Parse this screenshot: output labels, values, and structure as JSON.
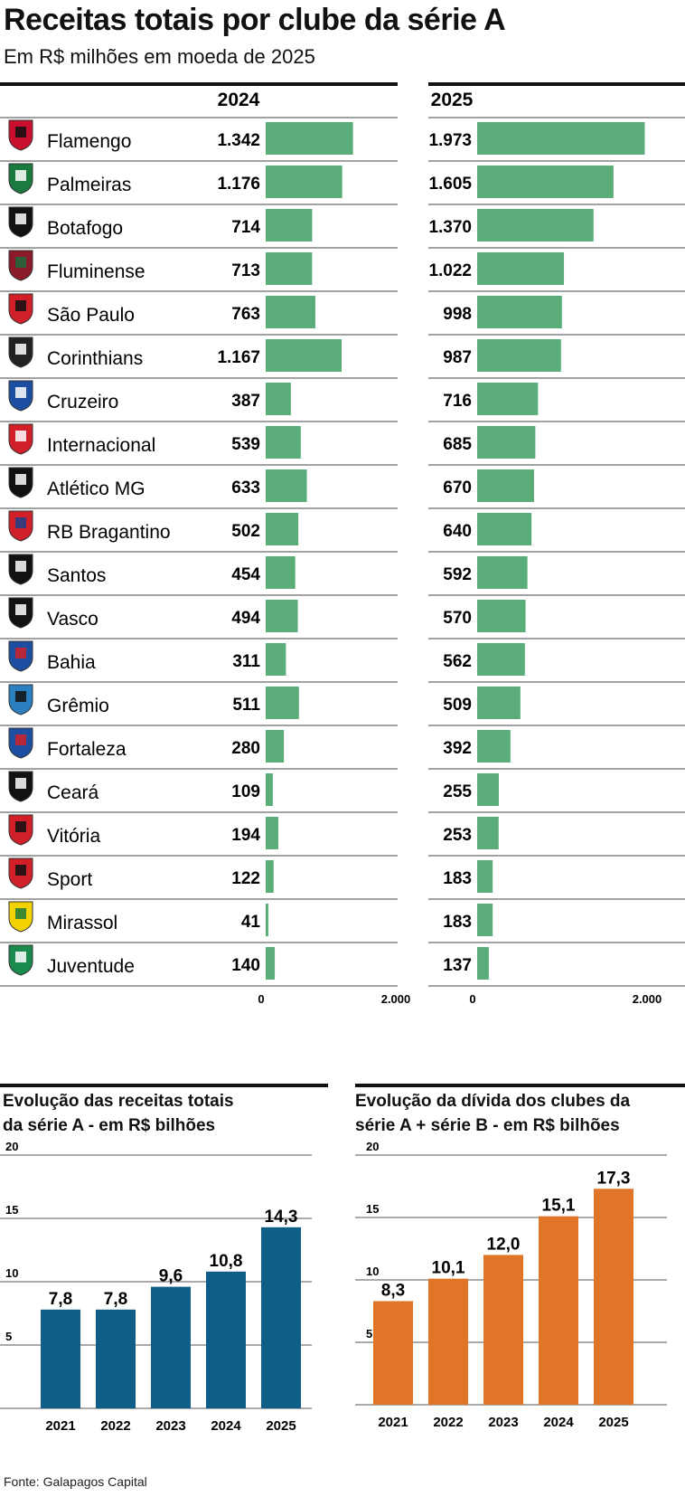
{
  "header": {
    "title": "Receitas totais por clube da série A",
    "subtitle": "Em R$ milhões em moeda de 2025"
  },
  "colors": {
    "clubs_bar": "#5aad78",
    "revenue_bar": "#0e5e87",
    "debt_bar": "#e07427"
  },
  "source": "Fonte: Galapagos Capital",
  "chart_data": [
    {
      "type": "bar",
      "orientation": "horizontal",
      "title": "Receitas totais por clube da série A",
      "subtitle": "Em R$ milhões em moeda de 2025",
      "categories": [
        "Flamengo",
        "Palmeiras",
        "Botafogo",
        "Fluminense",
        "São Paulo",
        "Corinthians",
        "Cruzeiro",
        "Internacional",
        "Atlético MG",
        "RB Bragantino",
        "Santos",
        "Vasco",
        "Bahia",
        "Grêmio",
        "Fortaleza",
        "Ceará",
        "Vitória",
        "Sport",
        "Mirassol",
        "Juventude"
      ],
      "category_icons": [
        "flamengo-crest-icon",
        "palmeiras-crest-icon",
        "botafogo-crest-icon",
        "fluminense-crest-icon",
        "sao-paulo-crest-icon",
        "corinthians-crest-icon",
        "cruzeiro-crest-icon",
        "internacional-crest-icon",
        "atletico-mg-crest-icon",
        "rb-bragantino-crest-icon",
        "santos-crest-icon",
        "vasco-crest-icon",
        "bahia-crest-icon",
        "gremio-crest-icon",
        "fortaleza-crest-icon",
        "ceara-crest-icon",
        "vitoria-crest-icon",
        "sport-crest-icon",
        "mirassol-crest-icon",
        "juventude-crest-icon"
      ],
      "series": [
        {
          "name": "2024",
          "values": [
            1342,
            1176,
            714,
            713,
            763,
            1167,
            387,
            539,
            633,
            502,
            454,
            494,
            311,
            511,
            280,
            109,
            194,
            122,
            41,
            140
          ],
          "labels": [
            "1.342",
            "1.176",
            "714",
            "713",
            "763",
            "1.167",
            "387",
            "539",
            "633",
            "502",
            "454",
            "494",
            "311",
            "511",
            "280",
            "109",
            "194",
            "122",
            "41",
            "140"
          ]
        },
        {
          "name": "2025",
          "values": [
            1973,
            1605,
            1370,
            1022,
            998,
            987,
            716,
            685,
            670,
            640,
            592,
            570,
            562,
            509,
            392,
            255,
            253,
            183,
            183,
            137
          ],
          "labels": [
            "1.973",
            "1.605",
            "1.370",
            "1.022",
            "998",
            "987",
            "716",
            "685",
            "670",
            "640",
            "592",
            "570",
            "562",
            "509",
            "392",
            "255",
            "253",
            "183",
            "183",
            "137"
          ]
        }
      ],
      "xlim": [
        0,
        2000
      ],
      "xticks": [
        "0",
        "2.000"
      ]
    },
    {
      "type": "bar",
      "title": "Evolução das receitas totais da série A - em R$ bilhões",
      "categories": [
        "2021",
        "2022",
        "2023",
        "2024",
        "2025"
      ],
      "values": [
        7.8,
        7.8,
        9.6,
        10.8,
        14.3
      ],
      "labels": [
        "7,8",
        "7,8",
        "9,6",
        "10,8",
        "14,3"
      ],
      "ylim": [
        0,
        20
      ],
      "yticks": [
        "5",
        "10",
        "15",
        "20"
      ],
      "grid": true
    },
    {
      "type": "bar",
      "title": "Evolução da dívida dos clubes da série A + série B - em R$ bilhões",
      "categories": [
        "2021",
        "2022",
        "2023",
        "2024",
        "2025"
      ],
      "values": [
        8.3,
        10.1,
        12.0,
        15.1,
        17.3
      ],
      "labels": [
        "8,3",
        "10,1",
        "12,0",
        "15,1",
        "17,3"
      ],
      "ylim": [
        0,
        20
      ],
      "yticks": [
        "5",
        "10",
        "15",
        "20"
      ],
      "grid": true
    }
  ],
  "small_charts": [
    {
      "title_lines": [
        "Evolução das receitas totais",
        "da série A - em R$ bilhões"
      ]
    },
    {
      "title_lines": [
        "Evolução da dívida dos clubes da",
        "série A +  série B - em R$ bilhões"
      ]
    }
  ]
}
